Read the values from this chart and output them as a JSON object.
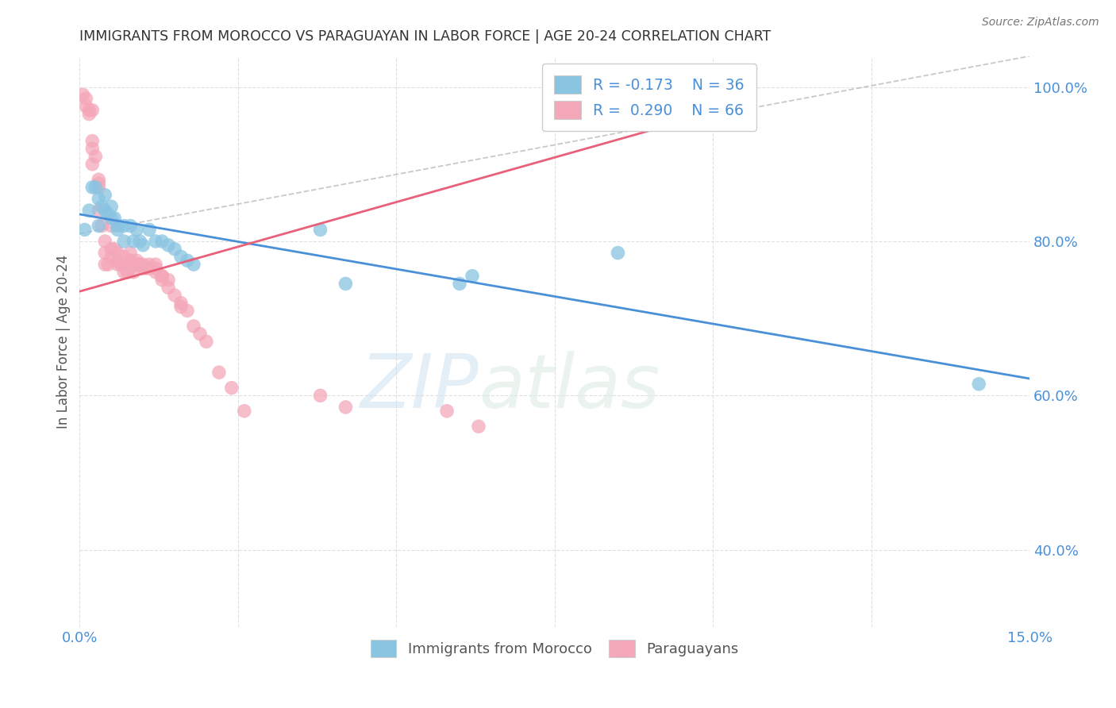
{
  "title": "IMMIGRANTS FROM MOROCCO VS PARAGUAYAN IN LABOR FORCE | AGE 20-24 CORRELATION CHART",
  "source": "Source: ZipAtlas.com",
  "ylabel": "In Labor Force | Age 20-24",
  "xlim": [
    0.0,
    0.15
  ],
  "ylim": [
    0.3,
    1.04
  ],
  "xticks": [
    0.0,
    0.025,
    0.05,
    0.075,
    0.1,
    0.125,
    0.15
  ],
  "xticklabels": [
    "0.0%",
    "",
    "",
    "",
    "",
    "",
    "15.0%"
  ],
  "yticks_right": [
    0.4,
    0.6,
    0.8,
    1.0
  ],
  "ytick_labels_right": [
    "40.0%",
    "60.0%",
    "80.0%",
    "100.0%"
  ],
  "blue_color": "#89c4e1",
  "pink_color": "#f4a7b9",
  "blue_line_color": "#4a90d9",
  "pink_line_color": "#e8607a",
  "legend_R_blue": "R = -0.173",
  "legend_N_blue": "N = 36",
  "legend_R_pink": "R = 0.290",
  "legend_N_pink": "N = 66",
  "watermark_zip": "ZIP",
  "watermark_atlas": "atlas",
  "blue_points_x": [
    0.0008,
    0.0015,
    0.002,
    0.0025,
    0.003,
    0.003,
    0.0035,
    0.004,
    0.004,
    0.0045,
    0.005,
    0.005,
    0.0055,
    0.006,
    0.006,
    0.007,
    0.007,
    0.008,
    0.0085,
    0.009,
    0.0095,
    0.01,
    0.011,
    0.012,
    0.013,
    0.014,
    0.015,
    0.016,
    0.017,
    0.018,
    0.038,
    0.042,
    0.06,
    0.062,
    0.085,
    0.142
  ],
  "blue_points_y": [
    0.815,
    0.84,
    0.87,
    0.87,
    0.855,
    0.82,
    0.845,
    0.84,
    0.86,
    0.835,
    0.83,
    0.845,
    0.83,
    0.815,
    0.82,
    0.82,
    0.8,
    0.82,
    0.8,
    0.815,
    0.8,
    0.795,
    0.815,
    0.8,
    0.8,
    0.795,
    0.79,
    0.78,
    0.775,
    0.77,
    0.815,
    0.745,
    0.745,
    0.755,
    0.785,
    0.615
  ],
  "pink_points_x": [
    0.0005,
    0.001,
    0.001,
    0.0015,
    0.0015,
    0.002,
    0.002,
    0.002,
    0.002,
    0.0025,
    0.003,
    0.003,
    0.003,
    0.003,
    0.0035,
    0.004,
    0.004,
    0.004,
    0.0045,
    0.005,
    0.005,
    0.005,
    0.0055,
    0.006,
    0.006,
    0.006,
    0.0065,
    0.007,
    0.007,
    0.007,
    0.0075,
    0.008,
    0.008,
    0.008,
    0.0085,
    0.009,
    0.009,
    0.009,
    0.0095,
    0.01,
    0.01,
    0.0105,
    0.011,
    0.011,
    0.012,
    0.012,
    0.012,
    0.013,
    0.013,
    0.013,
    0.014,
    0.014,
    0.015,
    0.016,
    0.016,
    0.017,
    0.018,
    0.019,
    0.02,
    0.022,
    0.024,
    0.026,
    0.038,
    0.042,
    0.058,
    0.063
  ],
  "pink_points_y": [
    0.99,
    0.985,
    0.975,
    0.97,
    0.965,
    0.97,
    0.93,
    0.92,
    0.9,
    0.91,
    0.88,
    0.875,
    0.87,
    0.84,
    0.82,
    0.8,
    0.785,
    0.77,
    0.77,
    0.82,
    0.79,
    0.78,
    0.79,
    0.785,
    0.775,
    0.77,
    0.77,
    0.78,
    0.77,
    0.76,
    0.76,
    0.785,
    0.775,
    0.765,
    0.76,
    0.775,
    0.77,
    0.77,
    0.77,
    0.77,
    0.765,
    0.765,
    0.77,
    0.765,
    0.77,
    0.765,
    0.76,
    0.755,
    0.755,
    0.75,
    0.75,
    0.74,
    0.73,
    0.72,
    0.715,
    0.71,
    0.69,
    0.68,
    0.67,
    0.63,
    0.61,
    0.58,
    0.6,
    0.585,
    0.58,
    0.56
  ],
  "blue_trend_x": [
    0.0,
    0.15
  ],
  "blue_trend_y": [
    0.835,
    0.622
  ],
  "pink_trend_x": [
    0.0,
    0.095
  ],
  "pink_trend_y": [
    0.735,
    0.955
  ],
  "dashed_line_x": [
    0.0,
    0.15
  ],
  "dashed_line_y": [
    0.81,
    1.04
  ],
  "grid_color": "#e0e0e0",
  "text_color": "#4a90d9",
  "title_color": "#333333",
  "source_color": "#777777"
}
